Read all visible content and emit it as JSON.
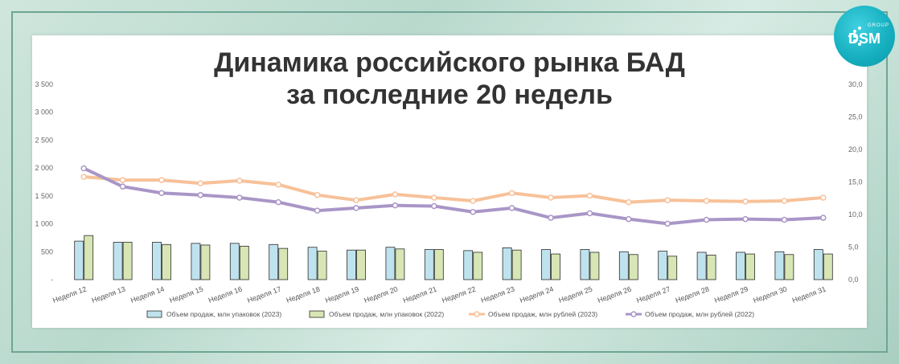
{
  "title": [
    "Динамика российского рынка БАД",
    "за последние 20 недель"
  ],
  "logo": {
    "text": "DSM",
    "sub": "GROUP"
  },
  "colors": {
    "bar2023": "#bfe3ee",
    "bar2022": "#d7e6b4",
    "barStroke": "#2b2b2b",
    "line2023": "#f7c199",
    "line2022": "#a996c7"
  },
  "chart_data": {
    "type": "bar+line",
    "categories": [
      "Неделя 12",
      "Неделя 13",
      "Неделя 14",
      "Неделя 15",
      "Неделя 16",
      "Неделя 17",
      "Неделя 18",
      "Неделя 19",
      "Неделя 20",
      "Неделя 21",
      "Неделя 22",
      "Неделя 23",
      "Неделя 24",
      "Неделя 25",
      "Неделя 26",
      "Неделя 27",
      "Неделя 28",
      "Неделя 29",
      "Неделя 30",
      "Неделя 31"
    ],
    "y_left": {
      "min": 0,
      "max": 3500,
      "ticks": [
        "-",
        "500",
        "1 000",
        "1 500",
        "2 000",
        "2 500",
        "3 000",
        "3 500"
      ]
    },
    "y_right": {
      "min": 0,
      "max": 30,
      "ticks": [
        "0,0",
        "5,0",
        "10,0",
        "15,0",
        "20,0",
        "25,0",
        "30,0"
      ]
    },
    "bar_series": [
      {
        "name": "Объем продаж, млн упаковок (2023)",
        "values": [
          690,
          670,
          670,
          650,
          650,
          630,
          580,
          530,
          580,
          540,
          520,
          570,
          540,
          540,
          500,
          510,
          490,
          490,
          500,
          540
        ]
      },
      {
        "name": "Объем продаж, млн упаковок (2022)",
        "values": [
          790,
          670,
          630,
          620,
          600,
          560,
          510,
          530,
          550,
          540,
          490,
          530,
          460,
          490,
          450,
          420,
          440,
          460,
          450,
          460
        ]
      }
    ],
    "line_series": [
      {
        "name": "Объем продаж, млн рублей (2023)",
        "values": [
          15.8,
          15.3,
          15.3,
          14.8,
          15.2,
          14.6,
          13.0,
          12.2,
          13.1,
          12.6,
          12.1,
          13.3,
          12.6,
          12.9,
          11.9,
          12.2,
          12.1,
          12.0,
          12.1,
          12.6
        ]
      },
      {
        "name": "Объем продаж, млн рублей (2022)",
        "values": [
          17.1,
          14.3,
          13.3,
          13.0,
          12.6,
          11.9,
          10.6,
          11.0,
          11.4,
          11.3,
          10.4,
          11.0,
          9.5,
          10.2,
          9.3,
          8.6,
          9.2,
          9.3,
          9.2,
          9.5
        ]
      }
    ],
    "legend": "bottom"
  }
}
